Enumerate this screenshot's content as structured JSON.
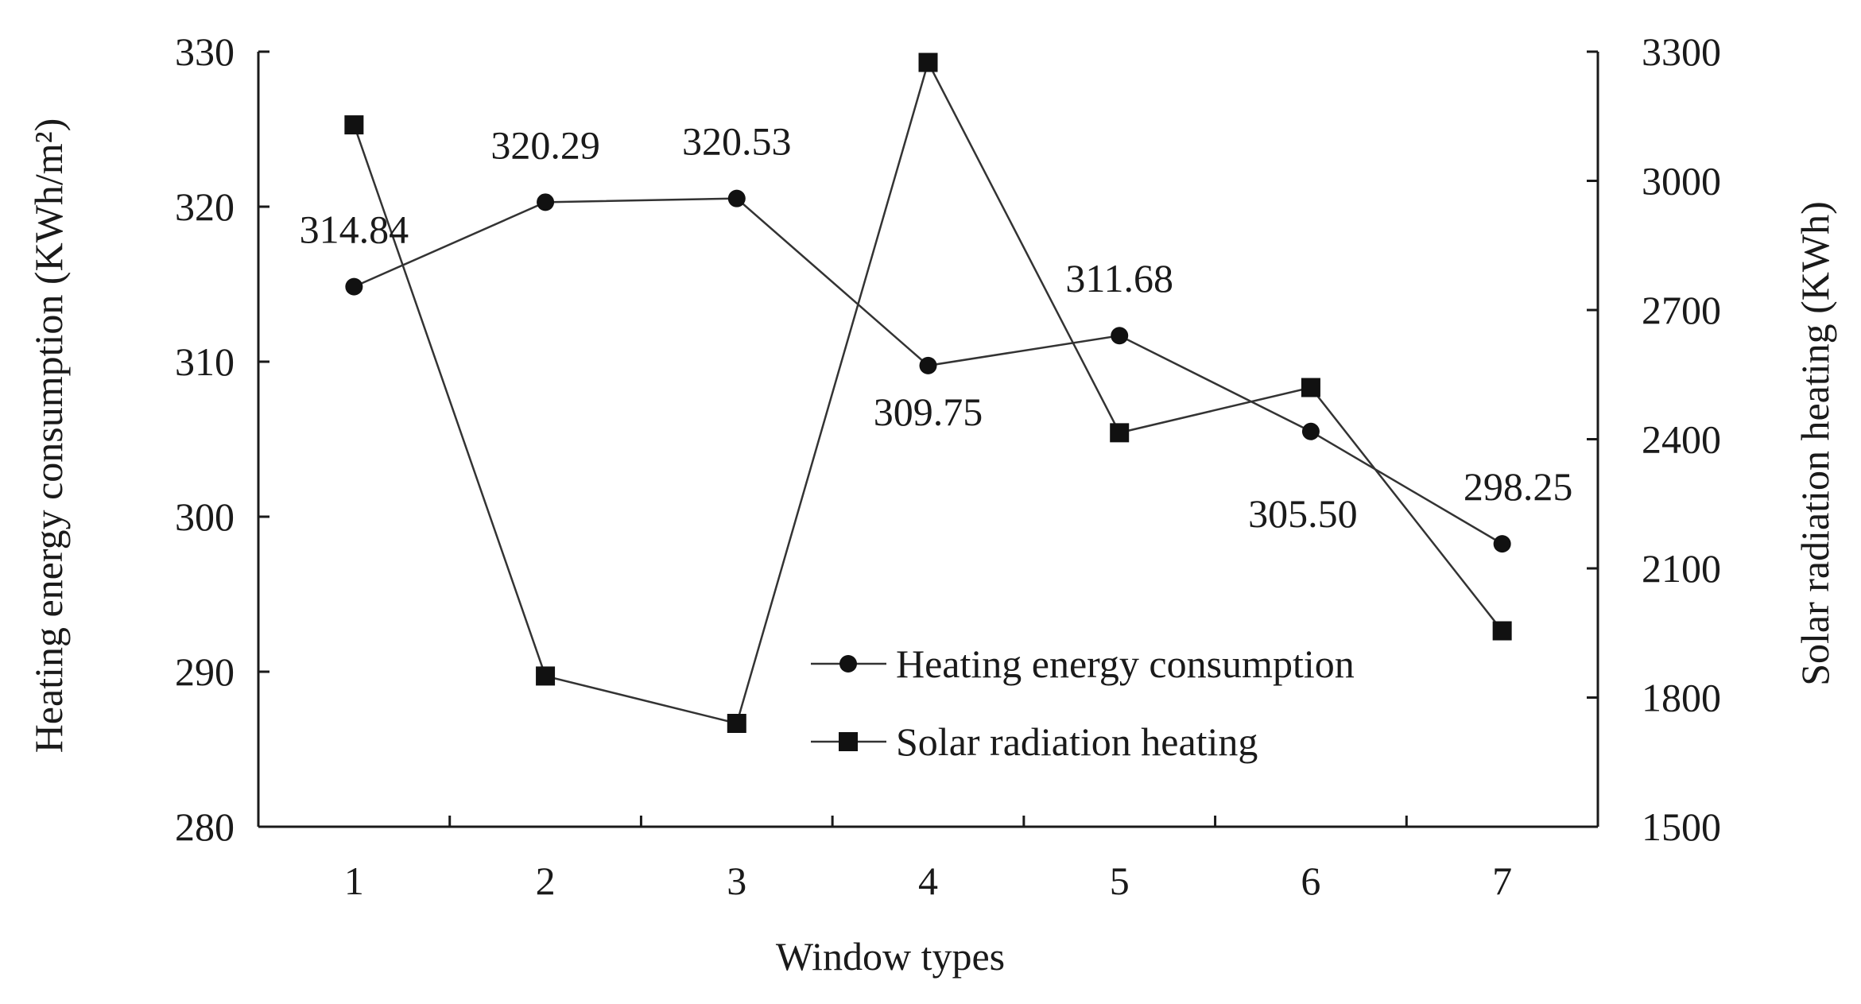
{
  "chart_data": {
    "type": "line",
    "title": "",
    "xlabel": "Window types",
    "ylabel_left": "Heating energy consumption (KWh/m²)",
    "ylabel_right": "Solar radiation heating (KWh)",
    "categories": [
      "1",
      "2",
      "3",
      "4",
      "5",
      "6",
      "7"
    ],
    "y_left": {
      "lim": [
        280,
        330
      ],
      "ticks": [
        "280",
        "290",
        "300",
        "310",
        "320",
        "330"
      ]
    },
    "y_right": {
      "lim": [
        1500,
        3300
      ],
      "ticks": [
        "1500",
        "1800",
        "2100",
        "2400",
        "2700",
        "3000",
        "3300"
      ]
    },
    "series": [
      {
        "name": "Heating energy consumption",
        "axis": "left",
        "marker": "circle",
        "values": [
          314.84,
          320.29,
          320.53,
          309.75,
          311.68,
          305.5,
          298.25
        ],
        "labels": [
          "314.84",
          "320.29",
          "320.53",
          "309.75",
          "311.68",
          "305.50",
          "298.25"
        ]
      },
      {
        "name": "Solar radiation heating",
        "axis": "right",
        "marker": "square",
        "values": [
          3130,
          1850,
          1740,
          3275,
          2415,
          2520,
          1955
        ]
      }
    ],
    "legend_position": "lower-center",
    "grid": false
  },
  "colors": {
    "line": "#333333",
    "marker": "#111111",
    "axis": "#1a1a1a"
  }
}
